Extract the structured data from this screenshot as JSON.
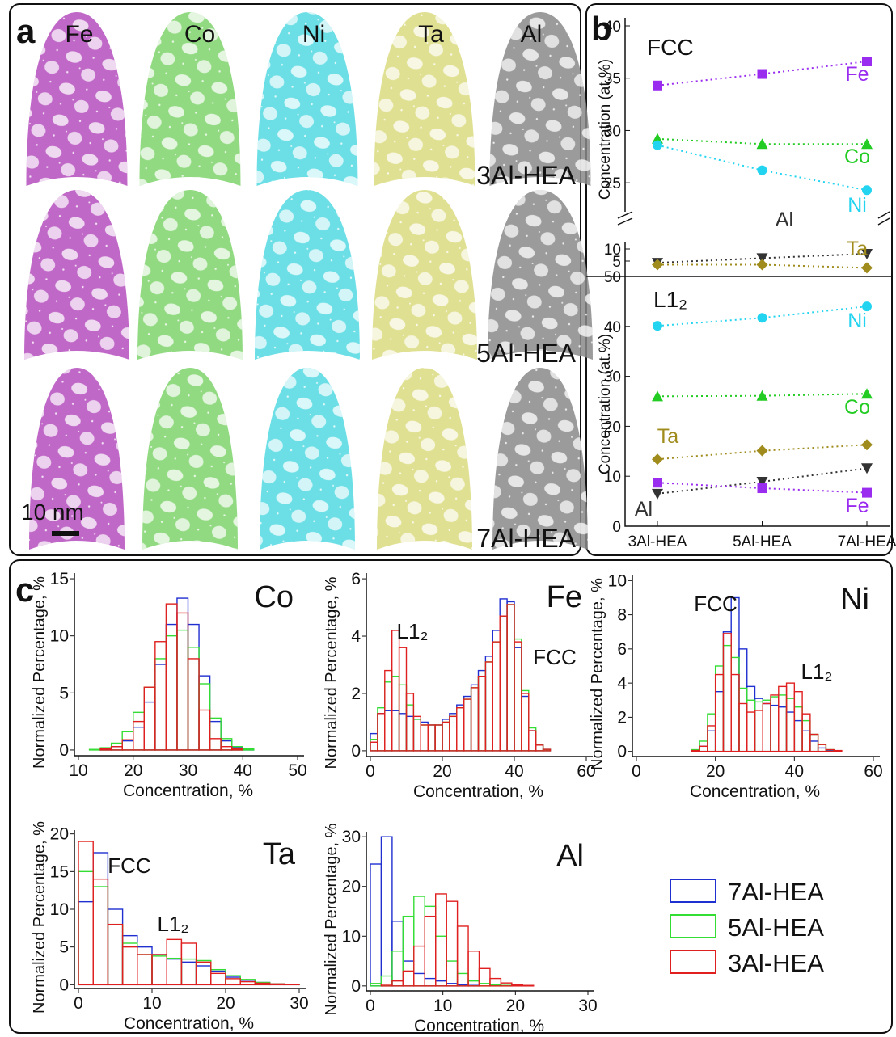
{
  "panel_a": {
    "label": "a",
    "elements": [
      "Fe",
      "Co",
      "Ni",
      "Ta",
      "Al"
    ],
    "samples": [
      "3Al-HEA",
      "5Al-HEA",
      "7Al-HEA"
    ],
    "scale_bar": "10 nm"
  },
  "chart_data": [
    {
      "type": "line",
      "label": "b",
      "categories": [
        "3Al-HEA",
        "5Al-HEA",
        "7Al-HEA"
      ],
      "panels": [
        {
          "title": "FCC",
          "ylabel": "Concentration (at.%)",
          "ylim": [
            22,
            40
          ],
          "yticks": [
            25,
            30,
            35,
            40
          ],
          "series": [
            {
              "name": "Fe",
              "color": "#9a2cf0",
              "marker": "square",
              "values": [
                34.3,
                35.4,
                36.6
              ]
            },
            {
              "name": "Co",
              "color": "#22cc22",
              "marker": "triangle-up",
              "values": [
                29.2,
                28.7,
                28.7
              ]
            },
            {
              "name": "Ni",
              "color": "#22d4f0",
              "marker": "circle",
              "values": [
                28.6,
                26.2,
                24.3
              ]
            }
          ]
        },
        {
          "ylim": [
            0,
            12
          ],
          "yticks": [
            5,
            10
          ],
          "series": [
            {
              "name": "Al",
              "color": "#333333",
              "marker": "triangle-down",
              "values": [
                4.3,
                6.2,
                8.0
              ]
            },
            {
              "name": "Ta",
              "color": "#a08c1c",
              "marker": "diamond",
              "values": [
                3.5,
                3.5,
                2.2
              ]
            }
          ]
        },
        {
          "title": "L1₂",
          "ylabel": "Concentration (at.%)",
          "ylim": [
            0,
            50
          ],
          "yticks": [
            0,
            10,
            20,
            30,
            40,
            50
          ],
          "series": [
            {
              "name": "Ni",
              "color": "#22d4f0",
              "marker": "circle",
              "values": [
                40.1,
                41.7,
                44.0
              ]
            },
            {
              "name": "Co",
              "color": "#22cc22",
              "marker": "triangle-up",
              "values": [
                26.0,
                26.1,
                26.5
              ]
            },
            {
              "name": "Ta",
              "color": "#a08c1c",
              "marker": "diamond",
              "values": [
                13.4,
                15.1,
                16.3
              ]
            },
            {
              "name": "Al",
              "color": "#333333",
              "marker": "triangle-down",
              "values": [
                6.5,
                8.9,
                11.6
              ]
            },
            {
              "name": "Fe",
              "color": "#9a2cf0",
              "marker": "square",
              "values": [
                8.7,
                7.6,
                6.7
              ]
            }
          ]
        }
      ]
    },
    {
      "type": "histogram",
      "label": "c",
      "title": "Co",
      "xlabel": "Concentration, %",
      "ylabel": "Normalized Percentage, %",
      "bins": [
        10,
        12,
        14,
        16,
        18,
        20,
        22,
        24,
        26,
        28,
        30,
        32,
        34,
        36,
        38,
        40,
        42,
        44,
        46,
        48,
        50
      ],
      "xlim": [
        10,
        50
      ],
      "ylim": [
        -0.5,
        15.5
      ],
      "xticks": [
        10,
        20,
        30,
        40,
        50
      ],
      "yticks": [
        0,
        5,
        10,
        15
      ],
      "legend": true,
      "series": [
        {
          "name": "7Al-HEA",
          "color": "#1f2fd0",
          "values": [
            0,
            0,
            0.1,
            0.3,
            0.8,
            2,
            4.2,
            7.5,
            11,
            13.3,
            11,
            6.5,
            2.5,
            0.8,
            0.2,
            0.05,
            0,
            0,
            0,
            0
          ]
        },
        {
          "name": "5Al-HEA",
          "color": "#33dd33",
          "values": [
            0,
            0.05,
            0.2,
            0.6,
            1.6,
            3.3,
            5.5,
            8,
            10,
            10.5,
            9,
            5.8,
            2.8,
            1,
            0.3,
            0.1,
            0,
            0,
            0,
            0
          ]
        },
        {
          "name": "3Al-HEA",
          "color": "#e02020",
          "values": [
            0,
            0,
            0.1,
            0.3,
            0.9,
            2.5,
            5.5,
            9.5,
            12.8,
            12,
            8,
            3.5,
            1,
            0.3,
            0.1,
            0,
            0,
            0,
            0,
            0
          ]
        }
      ]
    },
    {
      "type": "histogram",
      "title": "Fe",
      "xlabel": "Concentration, %",
      "ylabel": "Normalized Percentage, %",
      "annotations": [
        "L1₂",
        "FCC"
      ],
      "bins": [
        0,
        2,
        4,
        6,
        8,
        10,
        12,
        14,
        16,
        18,
        20,
        22,
        24,
        26,
        28,
        30,
        32,
        34,
        36,
        38,
        40,
        42,
        44,
        46,
        48,
        50,
        52,
        54,
        56,
        58,
        60
      ],
      "xlim": [
        0,
        60
      ],
      "ylim": [
        -0.2,
        6.2
      ],
      "xticks": [
        0,
        20,
        40,
        60
      ],
      "yticks": [
        0,
        2,
        4,
        6
      ],
      "series": [
        {
          "color": "#1f2fd0",
          "values": [
            0.6,
            1.3,
            1.4,
            1.4,
            1.3,
            1.2,
            1.1,
            1,
            0.9,
            0.9,
            1.1,
            1.3,
            1.6,
            1.9,
            2.3,
            2.8,
            3.3,
            4.2,
            5.3,
            5.2,
            3.6,
            1.9,
            0.7,
            0.2,
            0.05,
            0,
            0,
            0,
            0,
            0
          ]
        },
        {
          "color": "#33dd33",
          "values": [
            0.4,
            1.5,
            2.4,
            2.6,
            2.3,
            1.6,
            1.1,
            0.9,
            0.9,
            0.9,
            1,
            1.2,
            1.5,
            1.8,
            2.2,
            2.6,
            3.1,
            3.8,
            4.7,
            5.1,
            3.9,
            2.1,
            0.8,
            0.2,
            0.05,
            0,
            0,
            0,
            0,
            0
          ]
        },
        {
          "color": "#e02020",
          "values": [
            0.3,
            1.3,
            2.8,
            4.2,
            3.6,
            2,
            1.2,
            0.9,
            0.9,
            0.9,
            1,
            1.2,
            1.5,
            1.8,
            2.2,
            2.6,
            3.1,
            3.8,
            4.7,
            5.1,
            3.8,
            2,
            0.7,
            0.2,
            0.05,
            0,
            0,
            0,
            0,
            0
          ]
        }
      ]
    },
    {
      "type": "histogram",
      "title": "Ni",
      "xlabel": "Concentration, %",
      "ylabel": "Normalized Percentage, %",
      "annotations": [
        "FCC",
        "L1₂"
      ],
      "bins": [
        0,
        2,
        4,
        6,
        8,
        10,
        12,
        14,
        16,
        18,
        20,
        22,
        24,
        26,
        28,
        30,
        32,
        34,
        36,
        38,
        40,
        42,
        44,
        46,
        48,
        50,
        52,
        54,
        56,
        58,
        60
      ],
      "xlim": [
        0,
        60
      ],
      "ylim": [
        -0.3,
        10.3
      ],
      "xticks": [
        0,
        20,
        40,
        60
      ],
      "yticks": [
        0,
        2,
        4,
        6,
        8,
        10
      ],
      "series": [
        {
          "color": "#1f2fd0",
          "values": [
            0,
            0,
            0,
            0,
            0,
            0,
            0,
            0.05,
            0.3,
            1.2,
            3.5,
            7,
            9,
            6,
            3.8,
            3.1,
            2.8,
            2.7,
            2.6,
            2.3,
            1.8,
            1.2,
            0.6,
            0.2,
            0.05,
            0,
            0,
            0,
            0,
            0
          ]
        },
        {
          "color": "#33dd33",
          "values": [
            0,
            0,
            0,
            0,
            0,
            0,
            0,
            0.1,
            0.6,
            2.2,
            5,
            6.2,
            5.5,
            3.7,
            3,
            2.9,
            3,
            3.2,
            3.3,
            3.1,
            2.6,
            1.8,
            1,
            0.4,
            0.1,
            0,
            0,
            0,
            0,
            0
          ]
        },
        {
          "color": "#e02020",
          "values": [
            0,
            0,
            0,
            0,
            0,
            0,
            0,
            0.05,
            0.3,
            1.5,
            4.5,
            6.9,
            4.5,
            2.8,
            2.3,
            2.4,
            2.8,
            3.3,
            3.8,
            4,
            3.5,
            2.2,
            1,
            0.4,
            0.1,
            0.05,
            0,
            0,
            0,
            0
          ]
        }
      ]
    },
    {
      "type": "histogram",
      "title": "Ta",
      "xlabel": "Concentration, %",
      "ylabel": "Normalized Percentage, %",
      "annotations": [
        "FCC",
        "L1₂"
      ],
      "bins": [
        0,
        2,
        4,
        6,
        8,
        10,
        12,
        14,
        16,
        18,
        20,
        22,
        24,
        26,
        28,
        30
      ],
      "xlim": [
        0,
        30
      ],
      "ylim": [
        -0.5,
        20.5
      ],
      "xticks": [
        0,
        10,
        20,
        30
      ],
      "yticks": [
        0,
        5,
        10,
        15,
        20
      ],
      "series": [
        {
          "color": "#1f2fd0",
          "values": [
            11,
            17.5,
            10,
            6.5,
            5,
            4,
            3.4,
            3,
            2.5,
            1.8,
            1,
            0.6,
            0.3,
            0.1,
            0.05
          ]
        },
        {
          "color": "#33dd33",
          "values": [
            15,
            13,
            8,
            5.5,
            4,
            3.8,
            3.5,
            3.4,
            3.2,
            2,
            1.2,
            0.7,
            0.3,
            0.1,
            0.05
          ]
        },
        {
          "color": "#e02020",
          "values": [
            19,
            14,
            8,
            5,
            4,
            4,
            6,
            5.5,
            3,
            1.5,
            0.8,
            0.4,
            0.2,
            0.1,
            0.05
          ]
        }
      ]
    },
    {
      "type": "histogram",
      "title": "Al",
      "xlabel": "Concentration, %",
      "ylabel": "Normalized Percentage, %",
      "bins": [
        0,
        1.5,
        3,
        4.5,
        6,
        7.5,
        9,
        10.5,
        12,
        13.5,
        15,
        16.5,
        18,
        19.5,
        21,
        22.5,
        24,
        25.5,
        27,
        28.5,
        30
      ],
      "xlim": [
        0,
        30
      ],
      "ylim": [
        -1,
        31
      ],
      "xticks": [
        0,
        10,
        20,
        30
      ],
      "yticks": [
        0,
        10,
        20,
        30
      ],
      "series": [
        {
          "color": "#1f2fd0",
          "values": [
            24.5,
            30,
            13,
            5,
            2.5,
            1.5,
            1,
            0.5,
            0.2,
            0.1,
            0,
            0,
            0,
            0,
            0,
            0,
            0,
            0,
            0,
            0
          ]
        },
        {
          "color": "#33dd33",
          "values": [
            0.5,
            2,
            7,
            14,
            18,
            16,
            10,
            5,
            2.5,
            1,
            0.5,
            0.2,
            0.1,
            0,
            0,
            0,
            0,
            0,
            0,
            0
          ]
        },
        {
          "color": "#e02020",
          "values": [
            0,
            0.3,
            1,
            3,
            8,
            14,
            18.5,
            17,
            12,
            7,
            3.5,
            1.5,
            0.6,
            0.2,
            0.1,
            0,
            0,
            0,
            0,
            0
          ]
        }
      ]
    }
  ]
}
